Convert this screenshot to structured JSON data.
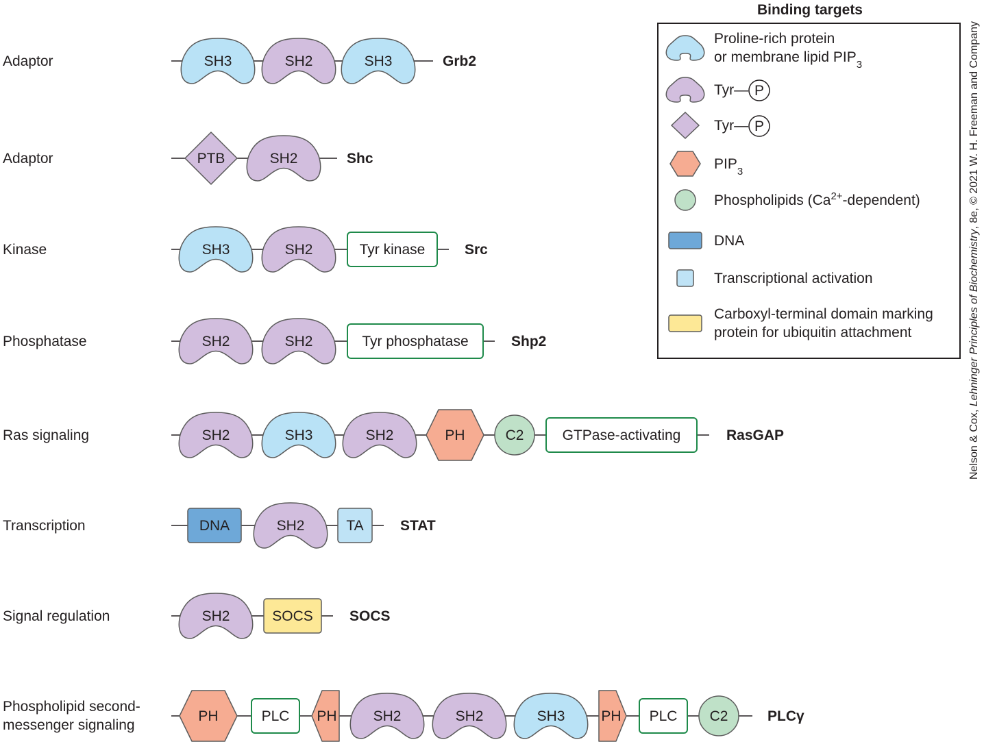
{
  "colors": {
    "sh2": "#d2bede",
    "sh3": "#b9e2f6",
    "ptb": "#d2bede",
    "ph": "#f6ac92",
    "c2": "#bfe1c8",
    "dna": "#6ea8d8",
    "ta": "#bfe3f6",
    "socs": "#fde896",
    "box_outline": "#1e8a4a",
    "stroke": "#5c5c5c"
  },
  "rows": [
    {
      "category": "Adaptor",
      "protein": "Grb2",
      "domains": [
        {
          "type": "cap",
          "label": "SH3",
          "color": "sh3"
        },
        {
          "type": "cap",
          "label": "SH2",
          "color": "sh2"
        },
        {
          "type": "cap",
          "label": "SH3",
          "color": "sh3"
        }
      ]
    },
    {
      "category": "Adaptor",
      "protein": "Shc",
      "domains": [
        {
          "type": "diamond",
          "label": "PTB",
          "color": "ptb"
        },
        {
          "type": "cap",
          "label": "SH2",
          "color": "sh2"
        }
      ]
    },
    {
      "category": "Kinase",
      "protein": "Src",
      "domains": [
        {
          "type": "cap",
          "label": "SH3",
          "color": "sh3"
        },
        {
          "type": "cap",
          "label": "SH2",
          "color": "sh2"
        },
        {
          "type": "box",
          "label": "Tyr kinase"
        }
      ]
    },
    {
      "category": "Phosphatase",
      "protein": "Shp2",
      "domains": [
        {
          "type": "cap",
          "label": "SH2",
          "color": "sh2"
        },
        {
          "type": "cap",
          "label": "SH2",
          "color": "sh2"
        },
        {
          "type": "box",
          "label": "Tyr phosphatase"
        }
      ]
    },
    {
      "category": "Ras signaling",
      "protein": "RasGAP",
      "domains": [
        {
          "type": "cap",
          "label": "SH2",
          "color": "sh2"
        },
        {
          "type": "cap",
          "label": "SH3",
          "color": "sh3"
        },
        {
          "type": "cap",
          "label": "SH2",
          "color": "sh2"
        },
        {
          "type": "hex",
          "label": "PH",
          "color": "ph"
        },
        {
          "type": "circle",
          "label": "C2",
          "color": "c2"
        },
        {
          "type": "box",
          "label": "GTPase-activating"
        }
      ]
    },
    {
      "category": "Transcription",
      "protein": "STAT",
      "domains": [
        {
          "type": "rect",
          "label": "DNA",
          "color": "dna"
        },
        {
          "type": "cap",
          "label": "SH2",
          "color": "sh2"
        },
        {
          "type": "rect",
          "label": "TA",
          "color": "ta"
        }
      ]
    },
    {
      "category": "Signal regulation",
      "protein": "SOCS",
      "domains": [
        {
          "type": "cap",
          "label": "SH2",
          "color": "sh2"
        },
        {
          "type": "rect",
          "label": "SOCS",
          "color": "socs"
        }
      ]
    },
    {
      "category": "Phospholipid second-",
      "category2": "messenger signaling",
      "protein": "PLCγ",
      "domains": [
        {
          "type": "hex",
          "label": "PH",
          "color": "ph"
        },
        {
          "type": "box",
          "label": "PLC"
        },
        {
          "type": "halfhexL",
          "label": "PH",
          "color": "ph"
        },
        {
          "type": "cap",
          "label": "SH2",
          "color": "sh2"
        },
        {
          "type": "cap",
          "label": "SH2",
          "color": "sh2"
        },
        {
          "type": "cap",
          "label": "SH3",
          "color": "sh3"
        },
        {
          "type": "halfhexR",
          "label": "PH",
          "color": "ph"
        },
        {
          "type": "box",
          "label": "PLC"
        },
        {
          "type": "circle",
          "label": "C2",
          "color": "c2"
        }
      ]
    }
  ],
  "legend": {
    "title": "Binding targets",
    "items": [
      {
        "shape": "cap",
        "color": "sh3",
        "text1": "Proline-rich protein",
        "text2": "or membrane lipid PIP",
        "text2_sub": "3"
      },
      {
        "shape": "cap",
        "color": "sh2",
        "text1": "Tyr—",
        "circled": "P"
      },
      {
        "shape": "diamond",
        "color": "ptb",
        "text1": "Tyr—",
        "circled": "P"
      },
      {
        "shape": "hex",
        "color": "ph",
        "text1": "PIP",
        "text1_sub": "3"
      },
      {
        "shape": "circle",
        "color": "c2",
        "text1": "Phospholipids (Ca",
        "text1_sup": "2+",
        "text1_tail": "-dependent)"
      },
      {
        "shape": "rect",
        "color": "dna",
        "text1": "DNA"
      },
      {
        "shape": "smallsq",
        "color": "ta",
        "text1": "Transcriptional activation"
      },
      {
        "shape": "rect",
        "color": "socs",
        "text1": "Carboxyl-terminal domain marking",
        "text2": "protein for ubiquitin attachment"
      }
    ]
  },
  "credit": {
    "prefix": "Nelson & Cox, ",
    "title": "Lehninger Principles of Biochemistry",
    "suffix": ", 8e, © 2021 W. H. Freeman and Company"
  }
}
